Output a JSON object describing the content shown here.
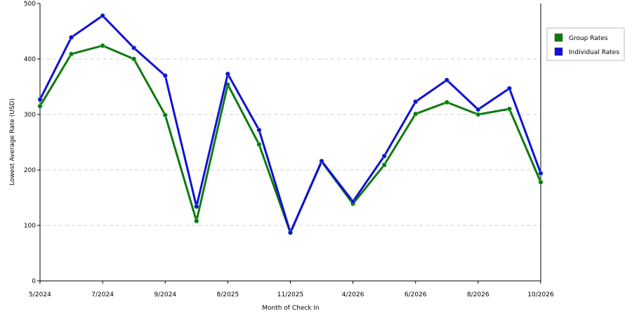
{
  "chart_data": {
    "type": "line",
    "y_label": "Lowest Average Rate (USD)",
    "x_label": "Month of Check In",
    "categories": [
      "5/2024",
      null,
      "7/2024",
      null,
      "9/2024",
      null,
      "8/2025",
      null,
      "11/2025",
      null,
      "4/2026",
      null,
      "6/2026",
      null,
      "8/2026",
      null,
      "10/2026"
    ],
    "series": [
      {
        "name": "Group Rates",
        "color": "#0f7a0f",
        "values": [
          315,
          409,
          424,
          400,
          299,
          108,
          354,
          246,
          87,
          215,
          139,
          209,
          301,
          322,
          300,
          310,
          178
        ]
      },
      {
        "name": "Individual Rates",
        "color": "#1010d8",
        "values": [
          327,
          439,
          478,
          420,
          370,
          134,
          373,
          272,
          87,
          216,
          143,
          225,
          323,
          362,
          309,
          347,
          194
        ]
      }
    ],
    "ylim": [
      0,
      500
    ],
    "yticks": [
      0,
      100,
      200,
      300,
      400,
      500
    ],
    "grid": true,
    "legend": "right"
  }
}
